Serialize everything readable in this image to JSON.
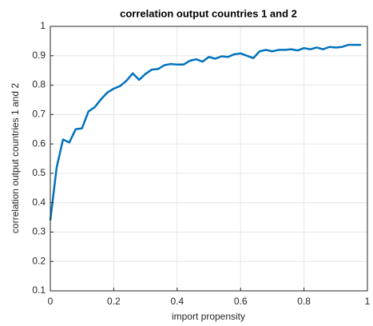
{
  "chart_data": {
    "type": "line",
    "title": "correlation output countries 1 and 2",
    "x_label": "import propensity",
    "y_label": "correlation output countries 1 and 2",
    "x": [
      0,
      0.02,
      0.04,
      0.06,
      0.08,
      0.1,
      0.12,
      0.14,
      0.16,
      0.18,
      0.2,
      0.22,
      0.24,
      0.26,
      0.28,
      0.3,
      0.32,
      0.34,
      0.36,
      0.38,
      0.4,
      0.42,
      0.44,
      0.46,
      0.48,
      0.5,
      0.52,
      0.54,
      0.56,
      0.58,
      0.6,
      0.62,
      0.64,
      0.66,
      0.68,
      0.7,
      0.72,
      0.74,
      0.76,
      0.78,
      0.8,
      0.82,
      0.84,
      0.86,
      0.88,
      0.9,
      0.92,
      0.94,
      0.96,
      0.98
    ],
    "series": [
      {
        "color": "#0072bd",
        "values": [
          0.34,
          0.52,
          0.615,
          0.605,
          0.65,
          0.653,
          0.71,
          0.725,
          0.752,
          0.775,
          0.788,
          0.797,
          0.815,
          0.84,
          0.818,
          0.838,
          0.853,
          0.855,
          0.868,
          0.872,
          0.87,
          0.87,
          0.883,
          0.888,
          0.88,
          0.896,
          0.89,
          0.898,
          0.896,
          0.905,
          0.908,
          0.9,
          0.892,
          0.915,
          0.92,
          0.915,
          0.92,
          0.92,
          0.922,
          0.918,
          0.926,
          0.922,
          0.928,
          0.922,
          0.93,
          0.928,
          0.93,
          0.937,
          0.937,
          0.937
        ]
      }
    ],
    "xlim": [
      0,
      1
    ],
    "ylim": [
      0.1,
      1
    ],
    "xticks": [
      0,
      0.2,
      0.4,
      0.6,
      0.8,
      1
    ],
    "yticks": [
      0.1,
      0.2,
      0.3,
      0.4,
      0.5,
      0.6,
      0.7,
      0.8,
      0.9,
      1
    ],
    "grid": true
  }
}
